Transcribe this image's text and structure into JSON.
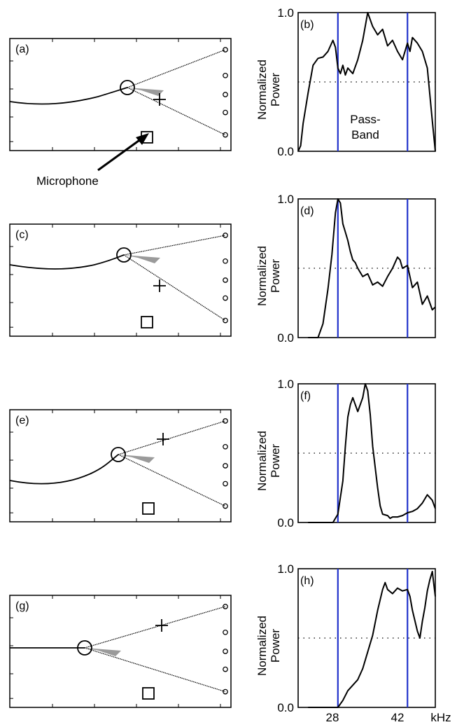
{
  "figure": {
    "microphone_label": "Microphone",
    "passband_label": [
      "Pass-",
      "Band"
    ],
    "x_unit": "kHz",
    "x_ticks": [
      "28",
      "42"
    ],
    "y_label": [
      "Normalized",
      "Power"
    ],
    "y_ticks": [
      "1.0",
      "0.0"
    ],
    "colors": {
      "passband_line": "#2233cc",
      "axis": "#000000",
      "beam_fill": "#888888",
      "threshold_line": "#000000"
    }
  },
  "geometry_panels": [
    {
      "label": "(a)"
    },
    {
      "label": "(c)"
    },
    {
      "label": "(e)"
    },
    {
      "label": "(g)"
    }
  ],
  "chart_data": [
    {
      "type": "line",
      "panel_label": "(b)",
      "title": "",
      "xlabel": "kHz",
      "ylabel": "Normalized Power",
      "x_ticks": [
        28,
        42
      ],
      "ylim": [
        0,
        1
      ],
      "passband_khz": [
        28,
        42
      ],
      "threshold": 0.5,
      "series": [
        {
          "x": [
            20,
            20.5,
            21,
            22,
            23,
            24,
            25,
            26,
            27,
            27.5,
            28,
            28.5,
            29,
            29.5,
            30,
            31,
            32,
            33,
            34,
            35,
            36,
            37,
            38,
            39,
            40,
            41,
            42,
            42.5,
            43,
            44,
            45,
            46,
            47,
            47.6
          ],
          "y": [
            0.0,
            0.04,
            0.2,
            0.42,
            0.62,
            0.67,
            0.68,
            0.72,
            0.8,
            0.75,
            0.6,
            0.56,
            0.62,
            0.55,
            0.6,
            0.56,
            0.66,
            0.8,
            1.0,
            0.9,
            0.84,
            0.88,
            0.76,
            0.8,
            0.72,
            0.66,
            0.78,
            0.72,
            0.82,
            0.78,
            0.72,
            0.6,
            0.22,
            0.0
          ]
        }
      ]
    },
    {
      "type": "line",
      "panel_label": "(d)",
      "title": "",
      "xlabel": "kHz",
      "ylabel": "Normalized Power",
      "x_ticks": [
        28,
        42
      ],
      "ylim": [
        0,
        1
      ],
      "passband_khz": [
        28,
        42
      ],
      "threshold": 0.5,
      "series": [
        {
          "x": [
            22,
            24,
            25,
            26,
            26.8,
            27.5,
            28,
            28.5,
            29,
            29.5,
            30,
            30.5,
            31,
            31.5,
            32,
            33,
            34,
            35,
            36,
            37,
            38,
            39,
            40,
            40.5,
            41,
            42,
            43,
            44,
            45,
            46,
            47,
            47.6
          ],
          "y": [
            0.0,
            0.0,
            0.1,
            0.35,
            0.6,
            0.9,
            1.0,
            0.97,
            0.82,
            0.76,
            0.7,
            0.62,
            0.56,
            0.54,
            0.5,
            0.44,
            0.46,
            0.38,
            0.4,
            0.37,
            0.44,
            0.5,
            0.58,
            0.56,
            0.5,
            0.52,
            0.36,
            0.4,
            0.24,
            0.3,
            0.2,
            0.22
          ]
        }
      ]
    },
    {
      "type": "line",
      "panel_label": "(f)",
      "title": "",
      "xlabel": "kHz",
      "ylabel": "Normalized Power",
      "x_ticks": [
        28,
        42
      ],
      "ylim": [
        0,
        1
      ],
      "passband_khz": [
        28,
        42
      ],
      "threshold": 0.5,
      "series": [
        {
          "x": [
            22,
            27,
            28,
            29,
            29.5,
            30,
            30.5,
            31,
            32,
            33,
            33.5,
            34,
            34.5,
            35,
            36,
            36.5,
            37,
            38,
            38.5,
            39,
            40,
            41,
            42,
            43,
            44,
            45,
            46,
            47,
            47.6
          ],
          "y": [
            0.0,
            0.0,
            0.06,
            0.3,
            0.55,
            0.76,
            0.85,
            0.9,
            0.8,
            0.9,
            1.0,
            0.95,
            0.78,
            0.55,
            0.25,
            0.12,
            0.06,
            0.05,
            0.03,
            0.04,
            0.04,
            0.05,
            0.07,
            0.08,
            0.1,
            0.14,
            0.2,
            0.16,
            0.1
          ]
        }
      ]
    },
    {
      "type": "line",
      "panel_label": "(h)",
      "title": "",
      "xlabel": "kHz",
      "ylabel": "Normalized Power",
      "x_ticks": [
        28,
        42
      ],
      "ylim": [
        0,
        1
      ],
      "passband_khz": [
        28,
        42
      ],
      "threshold": 0.5,
      "series": [
        {
          "x": [
            22,
            28,
            29,
            30,
            31,
            32,
            33,
            34,
            35,
            36,
            37,
            37.5,
            38,
            39,
            40,
            41,
            42,
            42.5,
            43,
            44,
            44.5,
            45,
            45.5,
            46,
            46.5,
            47,
            47.6
          ],
          "y": [
            0.0,
            0.0,
            0.05,
            0.12,
            0.16,
            0.2,
            0.28,
            0.4,
            0.52,
            0.7,
            0.85,
            0.9,
            0.85,
            0.82,
            0.86,
            0.84,
            0.85,
            0.8,
            0.7,
            0.55,
            0.5,
            0.62,
            0.72,
            0.84,
            0.92,
            0.98,
            0.8
          ]
        }
      ]
    }
  ]
}
